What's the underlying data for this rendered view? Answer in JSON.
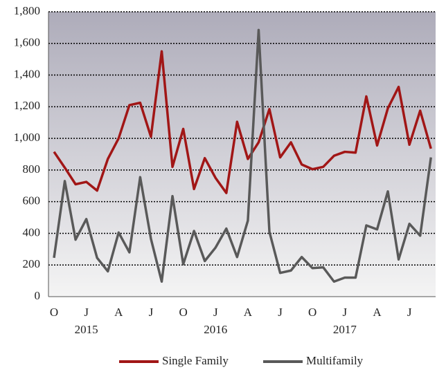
{
  "chart_data": {
    "type": "line",
    "categories": [
      "O",
      null,
      null,
      "J",
      null,
      null,
      "A",
      null,
      null,
      "J",
      null,
      null,
      "O",
      null,
      null,
      "J",
      null,
      null,
      "A",
      null,
      null,
      "J",
      null,
      null,
      "O",
      null,
      null,
      "J",
      null,
      null,
      "A",
      null,
      null,
      "J",
      null,
      null
    ],
    "category_groups": [
      null,
      null,
      null,
      "2015",
      null,
      null,
      null,
      null,
      null,
      null,
      null,
      null,
      null,
      null,
      null,
      "2016",
      null,
      null,
      null,
      null,
      null,
      null,
      null,
      null,
      null,
      null,
      null,
      "2017",
      null,
      null,
      null,
      null,
      null,
      null,
      null,
      null
    ],
    "series": [
      {
        "name": "Single Family",
        "color": "#a11616",
        "values": [
          915,
          815,
          710,
          725,
          670,
          870,
          1000,
          1210,
          1225,
          1010,
          1550,
          820,
          1060,
          680,
          875,
          750,
          655,
          1105,
          870,
          975,
          1185,
          880,
          975,
          835,
          805,
          820,
          890,
          915,
          910,
          1265,
          955,
          1190,
          1325,
          960,
          1175,
          935
        ]
      },
      {
        "name": "Multifamily",
        "color": "#595959",
        "values": [
          245,
          730,
          360,
          490,
          245,
          160,
          405,
          280,
          755,
          365,
          95,
          635,
          205,
          415,
          225,
          310,
          430,
          250,
          480,
          1685,
          410,
          150,
          165,
          250,
          180,
          185,
          95,
          120,
          120,
          450,
          425,
          665,
          235,
          460,
          385,
          880
        ]
      }
    ],
    "ylim": [
      0,
      1800
    ],
    "yticks": [
      0,
      200,
      400,
      600,
      800,
      {
        "value": 1000,
        "label": "1,000"
      },
      {
        "value": 1200,
        "label": "1,200"
      },
      {
        "value": 1400,
        "label": "1,400"
      },
      {
        "value": 1600,
        "label": "1,600"
      },
      {
        "value": 1800,
        "label": "1,800"
      }
    ],
    "grid": true,
    "legend": "bottom"
  }
}
